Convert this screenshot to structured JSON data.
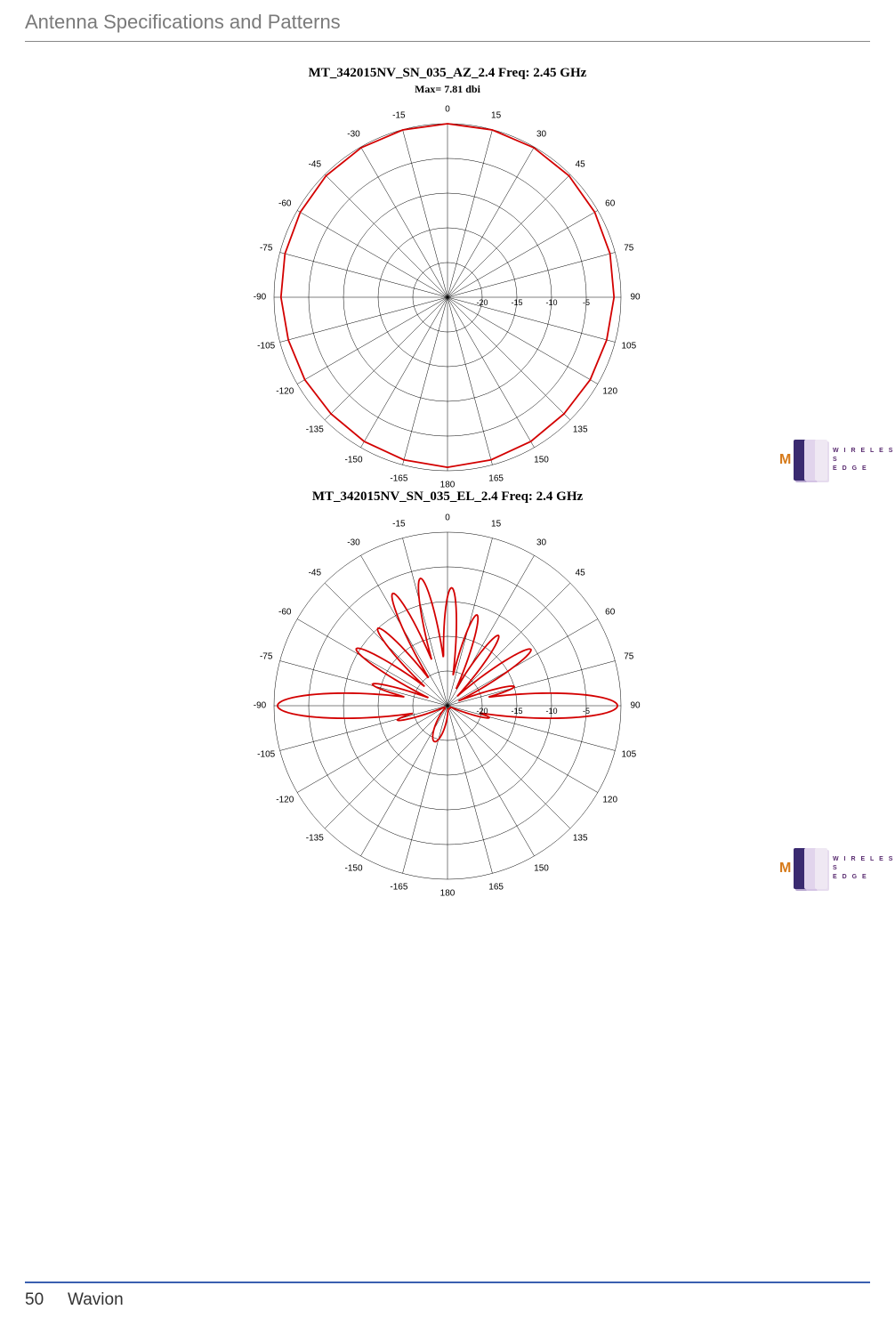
{
  "header": {
    "title": "Antenna Specifications and Patterns"
  },
  "footer": {
    "page": "50",
    "brand": "Wavion"
  },
  "logo": {
    "line1": "W I R E L E S S",
    "line2": "E D G E",
    "bars": [
      {
        "x": 30,
        "color": "#efe8f3",
        "shadow": "#e6dcee"
      },
      {
        "x": 18,
        "color": "#e1d4ec",
        "shadow": "#d4c3e4"
      },
      {
        "x": 6,
        "color": "#3a2a70",
        "shadow": "#b8a8d0"
      }
    ],
    "m_color": "#d67a1a",
    "fg": "#582a6f"
  },
  "charts": [
    {
      "title": "MT_342015NV_SN_035_AZ_2.4  Freq:  2.45 GHz",
      "subtitle": "Max= 7.81 dbi",
      "type": "polar",
      "size": 440,
      "radius": 195,
      "grid_color": "#000000",
      "grid_width": 0.5,
      "line_color": "#d30000",
      "line_width": 1.8,
      "background_color": "#ffffff",
      "angle_ticks": [
        -180,
        -165,
        -150,
        -135,
        -120,
        -105,
        -90,
        -75,
        -60,
        -45,
        -30,
        -15,
        0,
        15,
        30,
        45,
        60,
        75,
        90,
        105,
        120,
        135,
        150,
        165,
        180
      ],
      "radial_rings": 5,
      "radial_labels": [
        "-20",
        "-15",
        "-10",
        "-5"
      ],
      "pattern_type": "omni",
      "pattern_r_norm": [
        0.98,
        0.97,
        0.96,
        0.95,
        0.95,
        0.95,
        0.96,
        0.97,
        0.98,
        0.99,
        0.995,
        0.998,
        1.0,
        0.998,
        0.995,
        0.99,
        0.98,
        0.97,
        0.96,
        0.95,
        0.95,
        0.95,
        0.96,
        0.97,
        0.98
      ],
      "pattern_angles_deg": [
        -180,
        -165,
        -150,
        -135,
        -120,
        -105,
        -90,
        -75,
        -60,
        -45,
        -30,
        -15,
        0,
        15,
        30,
        45,
        60,
        75,
        90,
        105,
        120,
        135,
        150,
        165,
        180
      ]
    },
    {
      "title": "MT_342015NV_SN_035_EL_2.4  Freq:  2.4 GHz",
      "subtitle": "",
      "type": "polar",
      "size": 440,
      "radius": 195,
      "grid_color": "#000000",
      "grid_width": 0.5,
      "line_color": "#d30000",
      "line_width": 1.8,
      "background_color": "#ffffff",
      "angle_ticks": [
        -180,
        -165,
        -150,
        -135,
        -120,
        -105,
        -90,
        -75,
        -60,
        -45,
        -30,
        -15,
        0,
        15,
        30,
        45,
        60,
        75,
        90,
        105,
        120,
        135,
        150,
        165,
        180
      ],
      "radial_rings": 5,
      "radial_labels": [
        "-20",
        "-15",
        "-10",
        "-5"
      ],
      "pattern_type": "lobed",
      "lobes": [
        {
          "center_deg": -90,
          "half_width_deg": 7,
          "peak_r": 0.98
        },
        {
          "center_deg": -74,
          "half_width_deg": 4,
          "peak_r": 0.45
        },
        {
          "center_deg": -58,
          "half_width_deg": 5,
          "peak_r": 0.62
        },
        {
          "center_deg": -42,
          "half_width_deg": 5,
          "peak_r": 0.6
        },
        {
          "center_deg": -26,
          "half_width_deg": 5,
          "peak_r": 0.72
        },
        {
          "center_deg": -12,
          "half_width_deg": 5,
          "peak_r": 0.75
        },
        {
          "center_deg": 2,
          "half_width_deg": 5,
          "peak_r": 0.68
        },
        {
          "center_deg": 18,
          "half_width_deg": 5,
          "peak_r": 0.55
        },
        {
          "center_deg": 36,
          "half_width_deg": 5,
          "peak_r": 0.5
        },
        {
          "center_deg": 56,
          "half_width_deg": 5,
          "peak_r": 0.58
        },
        {
          "center_deg": 74,
          "half_width_deg": 4,
          "peak_r": 0.4
        },
        {
          "center_deg": 90,
          "half_width_deg": 7,
          "peak_r": 0.98
        },
        {
          "center_deg": -106,
          "half_width_deg": 4,
          "peak_r": 0.3
        },
        {
          "center_deg": 106,
          "half_width_deg": 4,
          "peak_r": 0.25
        },
        {
          "center_deg": -160,
          "half_width_deg": 12,
          "peak_r": 0.22
        }
      ],
      "floor_r": 0.02
    }
  ]
}
